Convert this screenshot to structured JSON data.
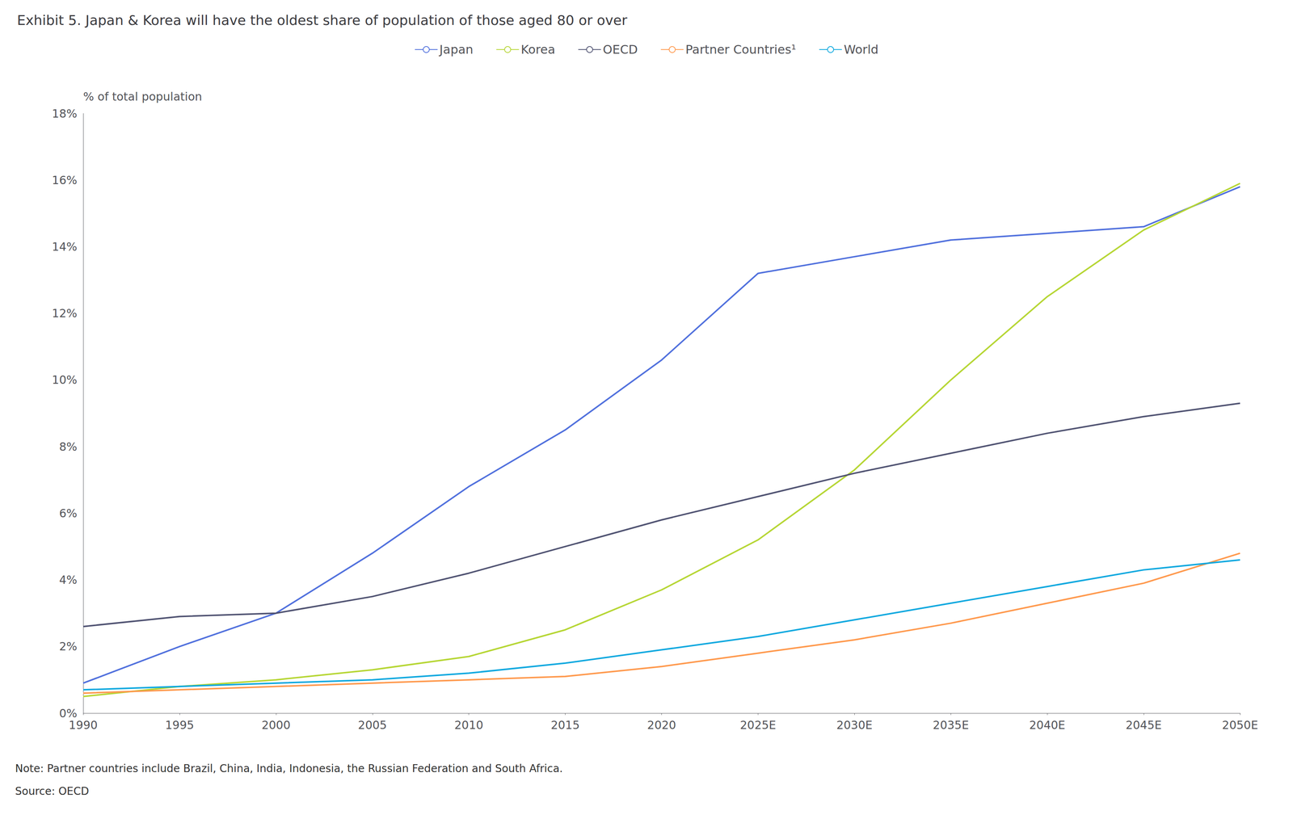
{
  "chart_data": {
    "type": "line",
    "title": "Exhibit 5. Japan & Korea will have the oldest share of population of those aged 80 or over",
    "ylabel": "% of total population",
    "annotations": [
      "Note: Partner countries include Brazil, China, India, Indonesia, the Russian Federation and South Africa.",
      "Source: OECD"
    ],
    "x": [
      1990,
      1995,
      2000,
      2005,
      2010,
      2015,
      2020,
      2025,
      2030,
      2035,
      2040,
      2045,
      2050
    ],
    "series": [
      {
        "name": "Japan",
        "values": [
          0.9,
          2.0,
          3.0,
          4.8,
          6.8,
          8.5,
          10.6,
          13.2,
          13.7,
          14.2,
          14.4,
          14.6,
          15.8
        ]
      },
      {
        "name": "Korea",
        "values": [
          0.5,
          0.8,
          1.0,
          1.3,
          1.7,
          2.5,
          3.7,
          5.2,
          7.3,
          10.0,
          12.5,
          14.5,
          15.9
        ]
      },
      {
        "name": "OECD",
        "values": [
          2.6,
          2.9,
          3.0,
          3.5,
          4.2,
          5.0,
          5.8,
          6.5,
          7.2,
          7.8,
          8.4,
          8.9,
          9.3
        ]
      },
      {
        "name": "Partner Countries¹",
        "values": [
          0.6,
          0.7,
          0.8,
          0.9,
          1.0,
          1.1,
          1.4,
          1.8,
          2.2,
          2.7,
          3.3,
          3.9,
          4.8
        ]
      },
      {
        "name": "World",
        "values": [
          0.7,
          0.8,
          0.9,
          1.0,
          1.2,
          1.5,
          1.9,
          2.3,
          2.8,
          3.3,
          3.8,
          4.3,
          4.6
        ]
      }
    ],
    "xlim": [
      1990,
      2050
    ],
    "xticks": [
      1990,
      1995,
      2000,
      2005,
      2010,
      2015,
      2020,
      {
        "value": 2025,
        "label": "2025E"
      },
      {
        "value": 2030,
        "label": "2030E"
      },
      {
        "value": 2035,
        "label": "2035E"
      },
      {
        "value": 2040,
        "label": "2040E"
      },
      {
        "value": 2045,
        "label": "2045E"
      },
      {
        "value": 2050,
        "label": "2050E"
      }
    ],
    "ylim": [
      0,
      18
    ],
    "yticks": [
      {
        "value": 0,
        "label": "0%"
      },
      {
        "value": 2,
        "label": "2%"
      },
      {
        "value": 4,
        "label": "4%"
      },
      {
        "value": 6,
        "label": "6%"
      },
      {
        "value": 8,
        "label": "8%"
      },
      {
        "value": 10,
        "label": "10%"
      },
      {
        "value": 12,
        "label": "12%"
      },
      {
        "value": 14,
        "label": "14%"
      },
      {
        "value": 16,
        "label": "16%"
      },
      {
        "value": 18,
        "label": "18%"
      }
    ],
    "grid": false,
    "legend": "top"
  }
}
